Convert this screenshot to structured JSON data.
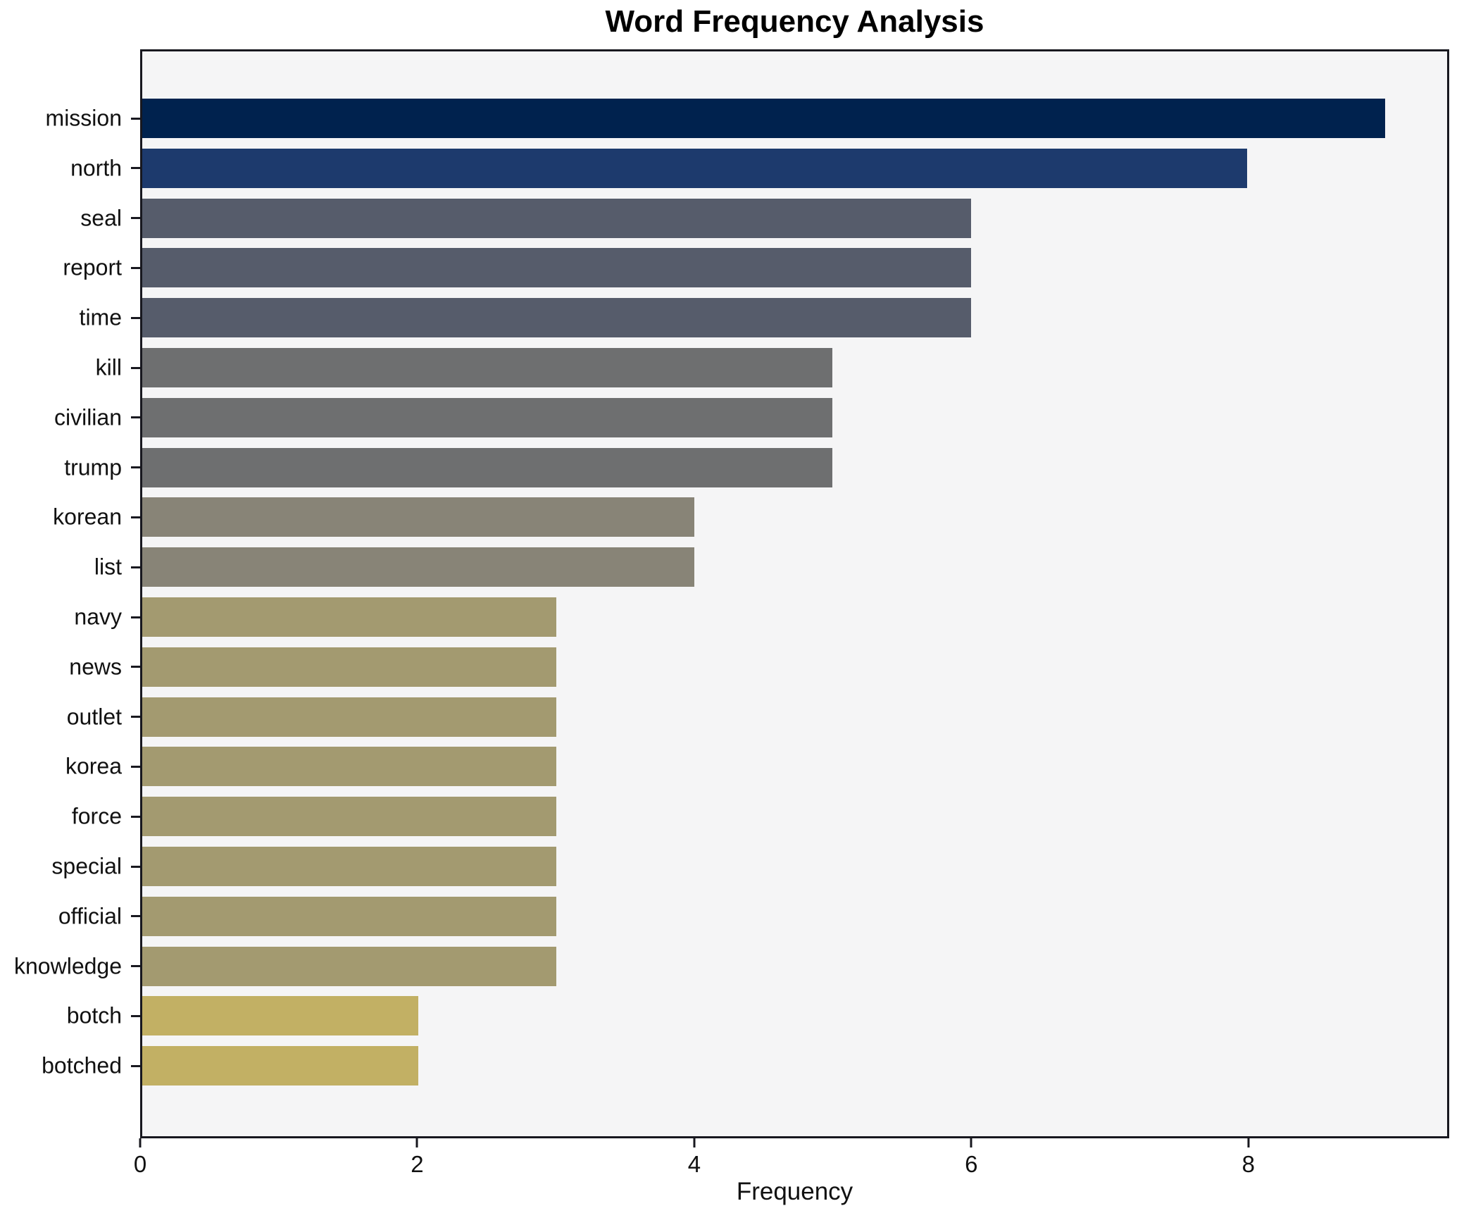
{
  "chart_data": {
    "type": "bar",
    "orientation": "horizontal",
    "title": "Word Frequency Analysis",
    "xlabel": "Frequency",
    "ylabel": "",
    "categories": [
      "mission",
      "north",
      "seal",
      "report",
      "time",
      "kill",
      "civilian",
      "trump",
      "korean",
      "list",
      "navy",
      "news",
      "outlet",
      "korea",
      "force",
      "special",
      "official",
      "knowledge",
      "botch",
      "botched"
    ],
    "values": [
      9,
      8,
      6,
      6,
      6,
      5,
      5,
      5,
      4,
      4,
      3,
      3,
      3,
      3,
      3,
      3,
      3,
      3,
      2,
      2
    ],
    "bar_colors": [
      "#00224e",
      "#1d3a6d",
      "#565c6b",
      "#565c6b",
      "#565c6b",
      "#6e6f70",
      "#6e6f70",
      "#6e6f70",
      "#888477",
      "#888477",
      "#a39a70",
      "#a39a70",
      "#a39a70",
      "#a39a70",
      "#a39a70",
      "#a39a70",
      "#a39a70",
      "#a39a70",
      "#c2b064",
      "#c2b064"
    ],
    "xticks": [
      0,
      2,
      4,
      6,
      8
    ],
    "xlim": [
      0,
      9.45
    ],
    "grid": false,
    "legend_position": "none",
    "plot_background": "#f5f5f6",
    "figure_background": "#ffffff",
    "spine_color": "#18181f",
    "text_color": "#111111"
  }
}
